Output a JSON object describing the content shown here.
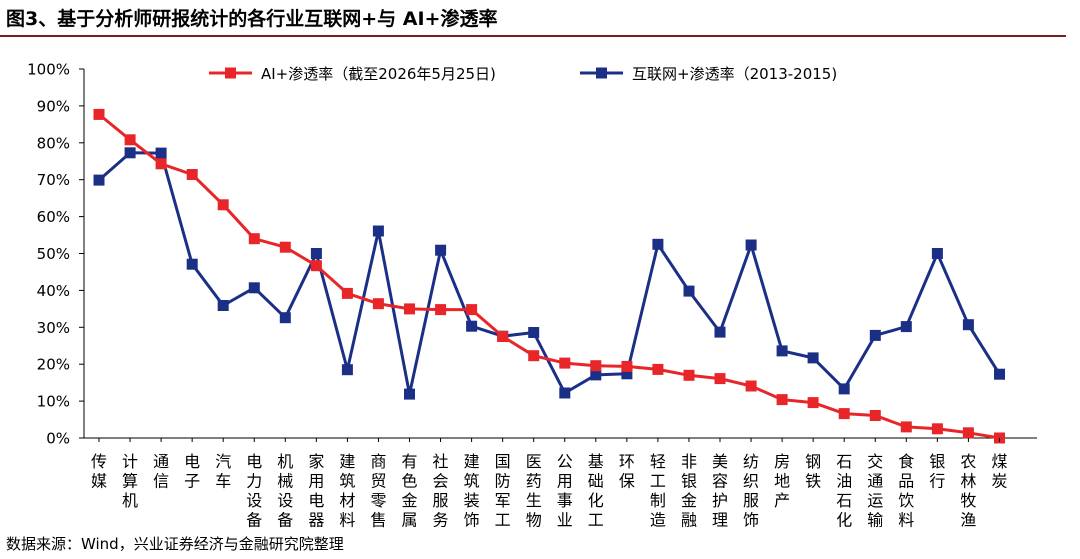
{
  "header": {
    "title": "图3、基于分析师研报统计的各行业互联网+与 AI+渗透率"
  },
  "footer": {
    "source": "数据来源：Wind，兴业证券经济与金融研究院整理"
  },
  "colors": {
    "ai_series": "#e8262a",
    "internet_series": "#1b2f87",
    "title_rule": "#7a1d1f"
  },
  "chart_data": {
    "type": "line",
    "title": "",
    "xlabel": "",
    "ylabel": "",
    "ylim": [
      0,
      100
    ],
    "yticks": [
      "0%",
      "10%",
      "20%",
      "30%",
      "40%",
      "50%",
      "60%",
      "70%",
      "80%",
      "90%",
      "100%"
    ],
    "legend_position": "top",
    "categories": [
      "传媒",
      "计算机",
      "通信",
      "电子",
      "汽车",
      "电力设备",
      "机械设备",
      "家用电器",
      "建筑材料",
      "商贸零售",
      "有色金属",
      "社会服务",
      "建筑装饰",
      "国防军工",
      "医药生物",
      "公用事业",
      "基础化工",
      "环保",
      "轻工制造",
      "非银金融",
      "美容护理",
      "纺织服饰",
      "房地产",
      "钢铁",
      "石油石化",
      "交通运输",
      "食品饮料",
      "银行",
      "农林牧渔",
      "煤炭"
    ],
    "series": [
      {
        "name": "AI+渗透率（截至2026年5月25日)",
        "color": "#e8262a",
        "marker": "square",
        "values": [
          87.7,
          80.8,
          74.3,
          71.4,
          63.2,
          54.0,
          51.7,
          46.7,
          39.2,
          36.4,
          35.0,
          34.8,
          34.8,
          27.5,
          22.3,
          20.3,
          19.6,
          19.4,
          18.6,
          17.0,
          16.1,
          14.1,
          10.4,
          9.6,
          6.6,
          6.1,
          3.0,
          2.5,
          1.4,
          0.0
        ]
      },
      {
        "name": "互联网+渗透率（2013-2015)",
        "color": "#1b2f87",
        "marker": "square",
        "values": [
          69.9,
          77.3,
          77.2,
          47.1,
          35.9,
          40.7,
          32.6,
          50.0,
          18.5,
          56.1,
          11.9,
          50.9,
          30.3,
          27.6,
          28.6,
          12.2,
          17.1,
          17.4,
          52.5,
          39.8,
          28.7,
          52.3,
          23.6,
          21.7,
          13.3,
          27.8,
          30.2,
          50.0,
          30.7,
          17.3
        ]
      }
    ]
  }
}
